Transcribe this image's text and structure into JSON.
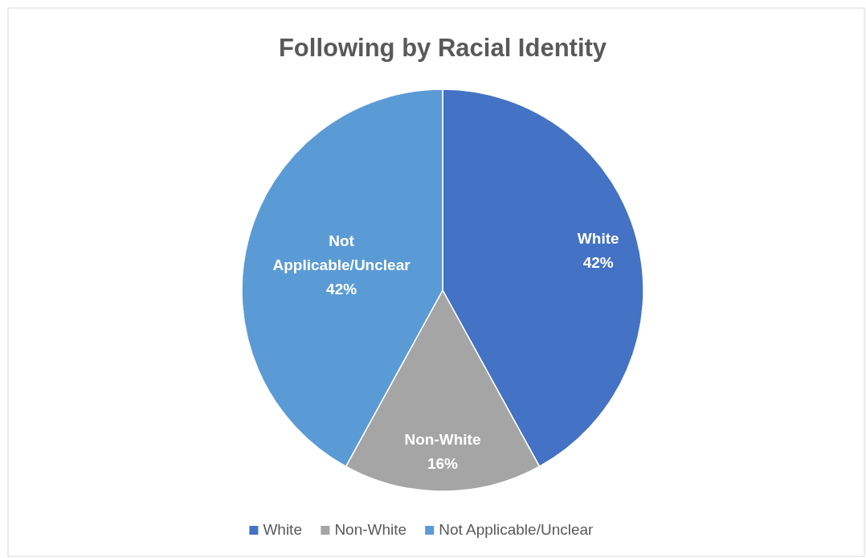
{
  "chart_data": {
    "type": "pie",
    "title": "Following by Racial Identity",
    "categories": [
      "White",
      "Non-White",
      "Not Applicable/Unclear"
    ],
    "values": [
      42,
      16,
      42
    ],
    "value_labels": [
      "42%",
      "16%",
      "42%"
    ],
    "colors": [
      "#4472c4",
      "#a5a5a5",
      "#5b9bd5"
    ],
    "legend": "bottom"
  }
}
